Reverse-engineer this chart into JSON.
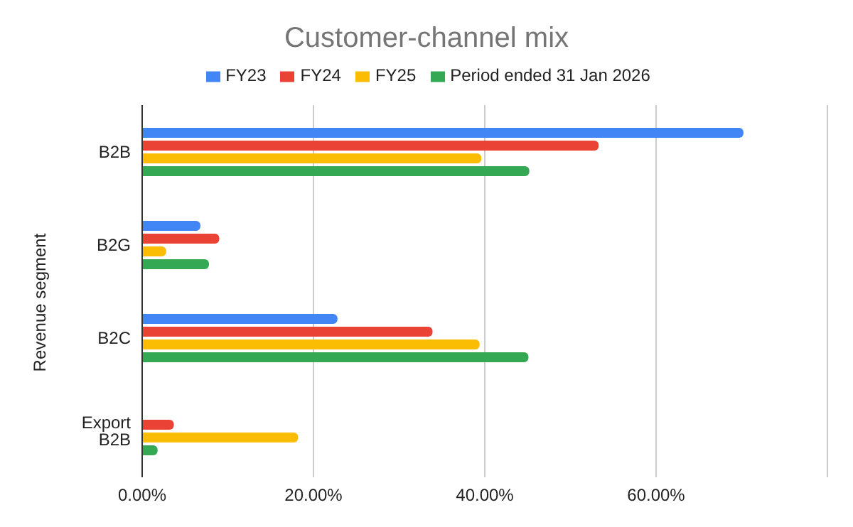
{
  "chart_data": {
    "type": "bar",
    "orientation": "horizontal",
    "title": "Customer-channel mix",
    "ylabel": "Revenue segment",
    "categories": [
      "B2B",
      "B2G",
      "B2C",
      "Export B2B"
    ],
    "series": [
      {
        "name": "FY23",
        "color": "#4285f4",
        "values": [
          70.2,
          6.8,
          22.8,
          0
        ]
      },
      {
        "name": "FY24",
        "color": "#ea4335",
        "values": [
          53.3,
          9.0,
          33.9,
          3.7
        ]
      },
      {
        "name": "FY25",
        "color": "#fbbc04",
        "values": [
          39.6,
          2.8,
          39.4,
          18.2
        ]
      },
      {
        "name": "Period ended 31 Jan 2026",
        "color": "#34a853",
        "values": [
          45.2,
          7.8,
          45.1,
          1.8
        ]
      }
    ],
    "xlim": [
      0,
      80
    ],
    "xticks": [
      {
        "value": 0,
        "label": "0.00%"
      },
      {
        "value": 20,
        "label": "20.00%"
      },
      {
        "value": 40,
        "label": "40.00%"
      },
      {
        "value": 60,
        "label": "60.00%"
      },
      {
        "value": 80,
        "label": null
      }
    ],
    "grid": "x",
    "legend": "top"
  }
}
